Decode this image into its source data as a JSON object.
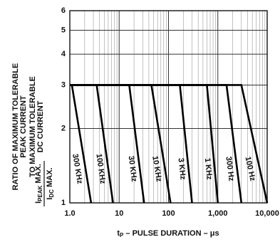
{
  "chart_data": {
    "type": "line",
    "y_label_lines": [
      "RATIO OF MAXIMUM TOLERABLE",
      "PEAK CURRENT",
      "TO MAXIMUM TOLERABLE",
      "DC CURRENT"
    ],
    "y_fraction": {
      "numerator": [
        "I",
        "PEAK",
        " MAX."
      ],
      "denominator": [
        "I",
        "DC",
        " MAX."
      ]
    },
    "x_label": [
      "t",
      "P",
      " – PULSE DURATION – μs"
    ],
    "log_x": true,
    "log_y": true,
    "grid": true,
    "minor_grid": true,
    "color": "#000000",
    "xlim": [
      1,
      10000
    ],
    "ylim": [
      1,
      6
    ],
    "xticks": [
      {
        "value": 1,
        "label": "1.0"
      },
      10,
      100,
      {
        "value": 1000,
        "label": "1,000"
      },
      {
        "value": 10000,
        "label": "10,000"
      }
    ],
    "yticks": [
      1,
      2,
      3,
      4,
      5,
      6
    ],
    "series": [
      {
        "name": "300 KHz",
        "x": [
          1,
          1.1,
          2.7
        ],
        "values": [
          3,
          3,
          1
        ]
      },
      {
        "name": "100 KHz",
        "x": [
          1,
          3.5,
          7.5
        ],
        "values": [
          3,
          3,
          1
        ]
      },
      {
        "name": "30 KHz",
        "x": [
          1,
          16,
          32
        ],
        "values": [
          3,
          3,
          1
        ]
      },
      {
        "name": "10 KHz",
        "x": [
          1,
          45,
          110
        ],
        "values": [
          3,
          3,
          1
        ]
      },
      {
        "name": "3 KHz",
        "x": [
          1,
          170,
          300
        ],
        "values": [
          3,
          3,
          1
        ]
      },
      {
        "name": "1 KHz",
        "x": [
          1,
          600,
          1000
        ],
        "values": [
          3,
          3,
          1
        ]
      },
      {
        "name": "300 Hz",
        "x": [
          1,
          1500,
          3000
        ],
        "values": [
          3,
          3,
          1
        ]
      },
      {
        "name": "100 Hz",
        "x": [
          1,
          3000,
          10000
        ],
        "values": [
          3,
          3,
          1
        ]
      }
    ]
  }
}
